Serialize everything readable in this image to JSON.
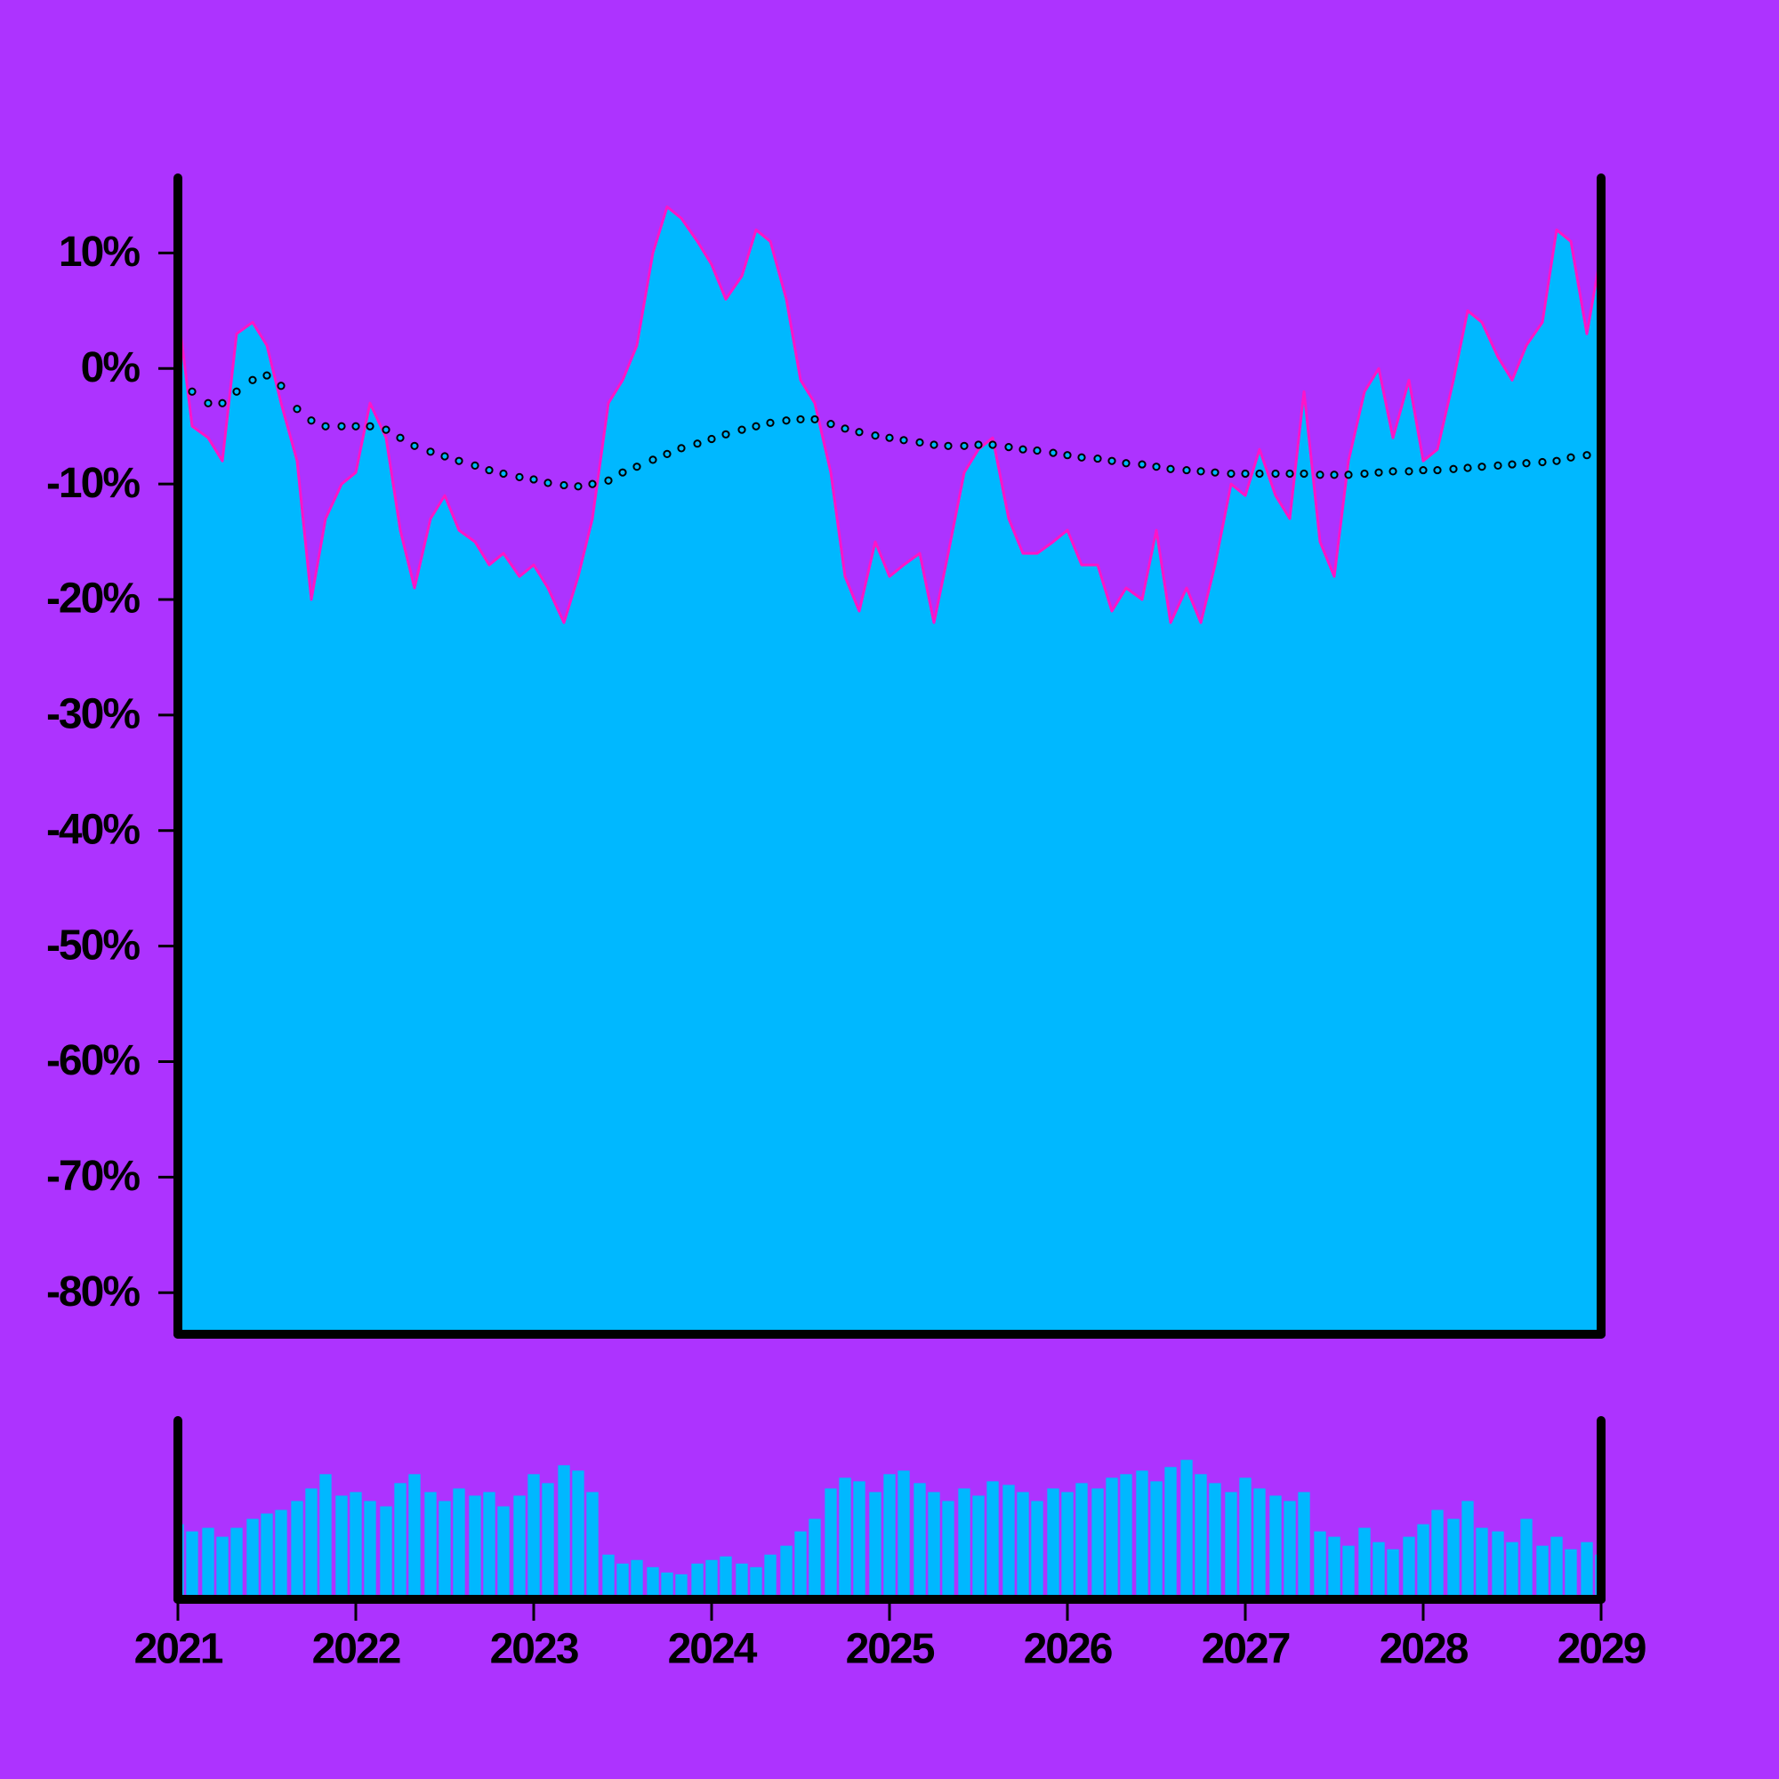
{
  "chart_data": {
    "type": "area",
    "x": [
      2021,
      2021.08,
      2021.17,
      2021.25,
      2021.33,
      2021.42,
      2021.5,
      2021.58,
      2021.67,
      2021.75,
      2021.83,
      2021.92,
      2022,
      2022.08,
      2022.17,
      2022.25,
      2022.33,
      2022.42,
      2022.5,
      2022.58,
      2022.67,
      2022.75,
      2022.83,
      2022.92,
      2023,
      2023.08,
      2023.17,
      2023.25,
      2023.33,
      2023.42,
      2023.5,
      2023.58,
      2023.67,
      2023.75,
      2023.83,
      2023.92,
      2024,
      2024.08,
      2024.17,
      2024.25,
      2024.33,
      2024.42,
      2024.5,
      2024.58,
      2024.67,
      2024.75,
      2024.83,
      2024.92,
      2025,
      2025.08,
      2025.17,
      2025.25,
      2025.33,
      2025.42,
      2025.5,
      2025.58,
      2025.67,
      2025.75,
      2025.83,
      2025.92,
      2026,
      2026.08,
      2026.17,
      2026.25,
      2026.33,
      2026.42,
      2026.5,
      2026.58,
      2026.67,
      2026.75,
      2026.83,
      2026.92,
      2027,
      2027.08,
      2027.17,
      2027.25,
      2027.33,
      2027.42,
      2027.5,
      2027.58,
      2027.67,
      2027.75,
      2027.83,
      2027.92,
      2028,
      2028.08,
      2028.17,
      2028.25,
      2028.33,
      2028.42,
      2028.5,
      2028.58,
      2028.67,
      2028.75,
      2028.83,
      2028.92,
      2029
    ],
    "xlim": [
      2021,
      2029
    ],
    "xticks": [
      2021,
      2022,
      2023,
      2024,
      2025,
      2026,
      2027,
      2028,
      2029
    ],
    "ylim": [
      -83.6,
      16.5
    ],
    "yticks": [
      {
        "value": 10,
        "label": "10%"
      },
      {
        "value": 0,
        "label": "0%"
      },
      {
        "value": -10,
        "label": "-10%"
      },
      {
        "value": -20,
        "label": "-20%"
      },
      {
        "value": -30,
        "label": "-30%"
      },
      {
        "value": -40,
        "label": "-40%"
      },
      {
        "value": -50,
        "label": "-50%"
      },
      {
        "value": -60,
        "label": "-60%"
      },
      {
        "value": -70,
        "label": "-70%"
      },
      {
        "value": -80,
        "label": "-80%"
      }
    ],
    "y2lim": [
      0,
      100
    ],
    "series": [
      {
        "type": "area",
        "color": "#00b8ff",
        "line_color": "#ff14c8",
        "values": [
          5,
          -5,
          -6,
          -8,
          3,
          4,
          2,
          -3,
          -8,
          -20,
          -13,
          -10,
          -9,
          -3,
          -6,
          -14,
          -19,
          -13,
          -11,
          -14,
          -15,
          -17,
          -16,
          -18,
          -17,
          -19,
          -22,
          -18,
          -13,
          -3,
          -1,
          2,
          10,
          14,
          13,
          11,
          9,
          6,
          8,
          12,
          11,
          6,
          -1,
          -3,
          -9,
          -18,
          -21,
          -15,
          -18,
          -17,
          -16,
          -22,
          -16,
          -9,
          -7,
          -6,
          -13,
          -16,
          -16,
          -15,
          -14,
          -17,
          -17,
          -21,
          -19,
          -20,
          -14,
          -22,
          -19,
          -22,
          -17,
          -10,
          -11,
          -7,
          -11,
          -13,
          -2,
          -15,
          -18,
          -8,
          -2,
          0,
          -6,
          -1,
          -8,
          -7,
          -1,
          5,
          4,
          1,
          -1,
          2,
          4,
          12,
          11,
          3,
          10
        ]
      },
      {
        "type": "dots",
        "color": "#00b8ff",
        "values": [
          1,
          -2,
          -3,
          -3,
          -2,
          -1,
          -0.6,
          -1.5,
          -3.5,
          -4.5,
          -5,
          -5,
          -5,
          -5,
          -5.3,
          -6,
          -6.7,
          -7.2,
          -7.6,
          -8,
          -8.4,
          -8.8,
          -9.1,
          -9.4,
          -9.6,
          -9.9,
          -10.1,
          -10.2,
          -10,
          -9.7,
          -9,
          -8.5,
          -7.9,
          -7.4,
          -6.9,
          -6.5,
          -6.1,
          -5.7,
          -5.3,
          -5,
          -4.7,
          -4.5,
          -4.4,
          -4.4,
          -4.8,
          -5.2,
          -5.5,
          -5.8,
          -6,
          -6.2,
          -6.4,
          -6.6,
          -6.7,
          -6.7,
          -6.6,
          -6.6,
          -6.8,
          -7,
          -7.1,
          -7.3,
          -7.5,
          -7.7,
          -7.8,
          -8,
          -8.2,
          -8.3,
          -8.5,
          -8.7,
          -8.8,
          -8.9,
          -9,
          -9.1,
          -9.1,
          -9.1,
          -9.1,
          -9.1,
          -9.1,
          -9.2,
          -9.2,
          -9.2,
          -9.1,
          -9,
          -8.9,
          -8.9,
          -8.8,
          -8.8,
          -8.7,
          -8.6,
          -8.5,
          -8.4,
          -8.3,
          -8.2,
          -8.1,
          -8,
          -7.7,
          -7.5,
          -7.4
        ]
      },
      {
        "type": "bar",
        "axis": "y2",
        "color": "#00b8ff",
        "values": [
          42,
          38,
          40,
          35,
          40,
          45,
          48,
          50,
          55,
          62,
          70,
          58,
          60,
          55,
          52,
          65,
          70,
          60,
          55,
          62,
          58,
          60,
          52,
          58,
          70,
          65,
          75,
          72,
          60,
          25,
          20,
          22,
          18,
          15,
          14,
          20,
          22,
          24,
          20,
          18,
          25,
          30,
          38,
          45,
          62,
          68,
          66,
          60,
          70,
          72,
          65,
          60,
          55,
          62,
          58,
          66,
          64,
          60,
          55,
          62,
          60,
          65,
          62,
          68,
          70,
          72,
          66,
          74,
          78,
          70,
          65,
          60,
          68,
          62,
          58,
          55,
          60,
          38,
          35,
          30,
          40,
          32,
          28,
          35,
          42,
          50,
          45,
          55,
          40,
          38,
          32,
          45,
          30,
          35,
          28,
          32,
          25
        ]
      }
    ]
  }
}
